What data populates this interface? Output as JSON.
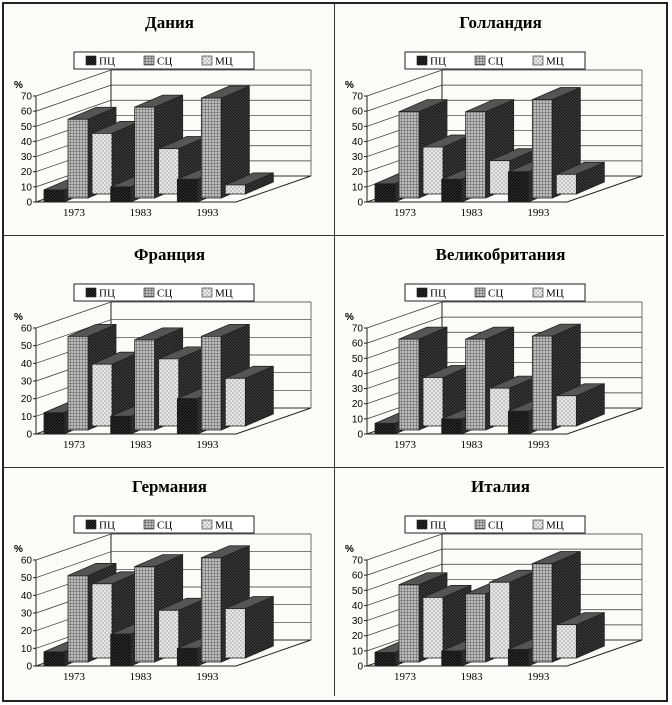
{
  "legend_labels": [
    "ПЦ",
    "СЦ",
    "МЦ"
  ],
  "unit_label": "%",
  "colors": {
    "pc": "#2c2c2c",
    "sc": "#8a8a8a",
    "mc": "#e6e6e6",
    "side_dark": "#222222",
    "top_light": "#555555"
  },
  "chart_data": [
    {
      "type": "bar",
      "title": "Дания",
      "categories": [
        "1973",
        "1983",
        "1993"
      ],
      "series": [
        {
          "name": "ПЦ",
          "values": [
            8,
            10,
            15
          ]
        },
        {
          "name": "СЦ",
          "values": [
            52,
            60,
            66
          ]
        },
        {
          "name": "МЦ",
          "values": [
            40,
            30,
            6
          ]
        }
      ],
      "ylabel": "%",
      "ylim": [
        0,
        70
      ],
      "yticks": [
        0,
        10,
        20,
        30,
        40,
        50,
        60,
        70
      ],
      "legend": "top-center",
      "grid": true
    },
    {
      "type": "bar",
      "title": "Голландия",
      "categories": [
        "1973",
        "1983",
        "1993"
      ],
      "series": [
        {
          "name": "ПЦ",
          "values": [
            12,
            15,
            20
          ]
        },
        {
          "name": "СЦ",
          "values": [
            57,
            57,
            65
          ]
        },
        {
          "name": "МЦ",
          "values": [
            31,
            22,
            13
          ]
        }
      ],
      "ylabel": "%",
      "ylim": [
        0,
        70
      ],
      "yticks": [
        0,
        10,
        20,
        30,
        40,
        50,
        60,
        70
      ],
      "legend": "top-center",
      "grid": true
    },
    {
      "type": "bar",
      "title": "Франция",
      "categories": [
        "1973",
        "1983",
        "1993"
      ],
      "series": [
        {
          "name": "ПЦ",
          "values": [
            12,
            10,
            20
          ]
        },
        {
          "name": "СЦ",
          "values": [
            53,
            51,
            53
          ]
        },
        {
          "name": "МЦ",
          "values": [
            35,
            38,
            27
          ]
        }
      ],
      "ylabel": "%",
      "ylim": [
        0,
        60
      ],
      "yticks": [
        0,
        10,
        20,
        30,
        40,
        50,
        60
      ],
      "legend": "top-center",
      "grid": true
    },
    {
      "type": "bar",
      "title": "Великобритания",
      "categories": [
        "1973",
        "1983",
        "1993"
      ],
      "series": [
        {
          "name": "ПЦ",
          "values": [
            7,
            10,
            15
          ]
        },
        {
          "name": "СЦ",
          "values": [
            60,
            60,
            62
          ]
        },
        {
          "name": "МЦ",
          "values": [
            32,
            25,
            20
          ]
        }
      ],
      "ylabel": "%",
      "ylim": [
        0,
        70
      ],
      "yticks": [
        0,
        10,
        20,
        30,
        40,
        50,
        60,
        70
      ],
      "legend": "top-center",
      "grid": true
    },
    {
      "type": "bar",
      "title": "Германия",
      "categories": [
        "1973",
        "1983",
        "1993"
      ],
      "series": [
        {
          "name": "ПЦ",
          "values": [
            8,
            18,
            10
          ]
        },
        {
          "name": "СЦ",
          "values": [
            49,
            54,
            59
          ]
        },
        {
          "name": "МЦ",
          "values": [
            42,
            27,
            28
          ]
        }
      ],
      "ylabel": "%",
      "ylim": [
        0,
        60
      ],
      "yticks": [
        0,
        10,
        20,
        30,
        40,
        50,
        60
      ],
      "legend": "top-center",
      "grid": true
    },
    {
      "type": "bar",
      "title": "Италия",
      "categories": [
        "1973",
        "1983",
        "1993"
      ],
      "series": [
        {
          "name": "ПЦ",
          "values": [
            9,
            10,
            11
          ]
        },
        {
          "name": "СЦ",
          "values": [
            51,
            45,
            65
          ]
        },
        {
          "name": "МЦ",
          "values": [
            40,
            50,
            22
          ]
        }
      ],
      "ylabel": "%",
      "ylim": [
        0,
        70
      ],
      "yticks": [
        0,
        10,
        20,
        30,
        40,
        50,
        60,
        70
      ],
      "legend": "top-center",
      "grid": true
    }
  ]
}
